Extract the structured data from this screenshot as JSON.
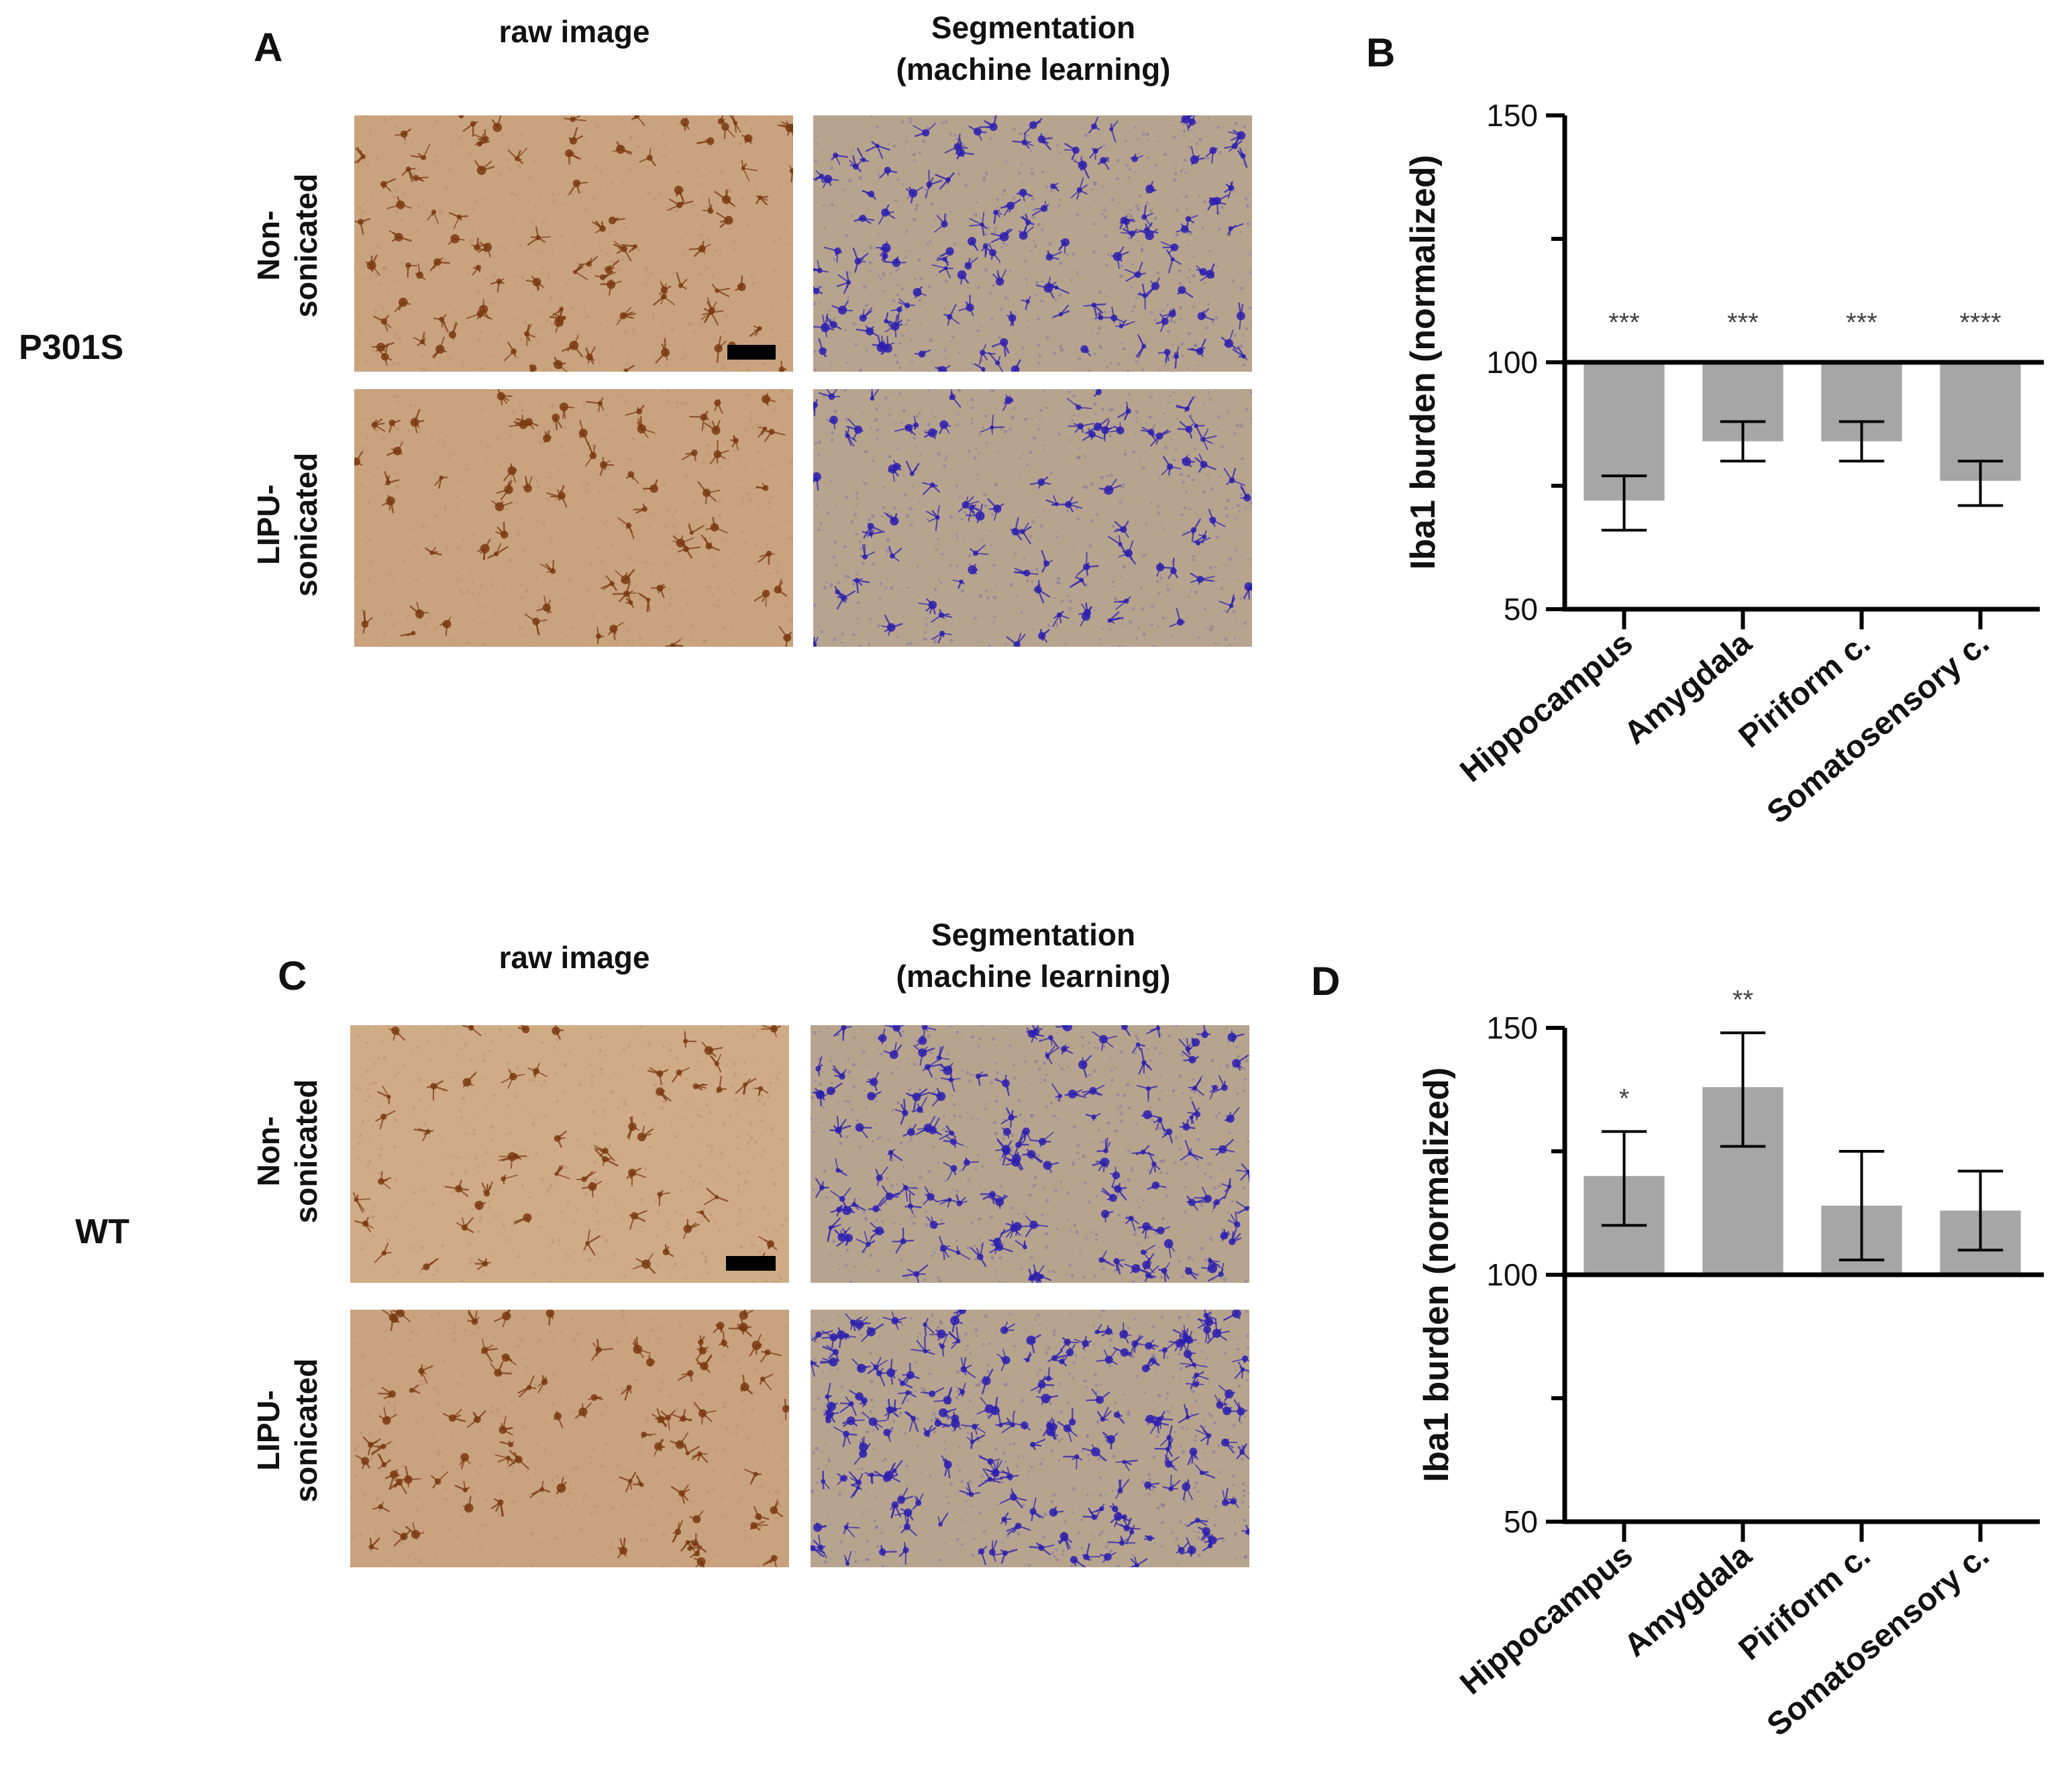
{
  "colors": {
    "bar_fill": "#a6a6a6",
    "axis": "#000000",
    "raw_bg": "#c9a37e",
    "raw_cell": "#7a3a12",
    "seg_bg": "#b7a48f",
    "seg_cell": "#2d1fb0",
    "scale_bar": "#000000"
  },
  "figure": {
    "top_group": {
      "group_label": "P301S",
      "images_panel": {
        "letter": "A",
        "col_headers": [
          "raw image",
          "Segmentation\n(machine learning)"
        ],
        "row_labels": [
          "Non-\nsonicated",
          "LIPU-\nsonicated"
        ]
      },
      "chart_panel": {
        "letter": "B"
      }
    },
    "bottom_group": {
      "group_label": "WT",
      "images_panel": {
        "letter": "C",
        "col_headers": [
          "raw image",
          "Segmentation\n(machine learning)"
        ],
        "row_labels": [
          "Non-\nsonicated",
          "LIPU-\nsonicated"
        ]
      },
      "chart_panel": {
        "letter": "D"
      }
    }
  },
  "chart_data": [
    {
      "type": "bar",
      "panel": "B",
      "title": "",
      "ylabel": "Iba1 burden (normalized)",
      "xlabel": "",
      "ylim": [
        50,
        150
      ],
      "yticks": [
        50,
        100,
        150
      ],
      "baseline": 100,
      "categories": [
        "Hippocampus",
        "Amygdala",
        "Piriform c.",
        "Somatosensory c."
      ],
      "values": [
        72,
        84,
        84,
        76
      ],
      "error_low": [
        66,
        80,
        80,
        71
      ],
      "error_high": [
        77,
        88,
        88,
        80
      ],
      "significance": [
        "***",
        "***",
        "***",
        "****"
      ],
      "grid": false
    },
    {
      "type": "bar",
      "panel": "D",
      "title": "",
      "ylabel": "Iba1 burden (normalized)",
      "xlabel": "",
      "ylim": [
        50,
        150
      ],
      "yticks": [
        50,
        100,
        150
      ],
      "baseline": 100,
      "categories": [
        "Hippocampus",
        "Amygdala",
        "Piriform c.",
        "Somatosensory c."
      ],
      "values": [
        120,
        138,
        114,
        113
      ],
      "error_low": [
        110,
        126,
        103,
        105
      ],
      "error_high": [
        129,
        149,
        125,
        121
      ],
      "significance": [
        "*",
        "**",
        "",
        ""
      ],
      "grid": false
    }
  ]
}
